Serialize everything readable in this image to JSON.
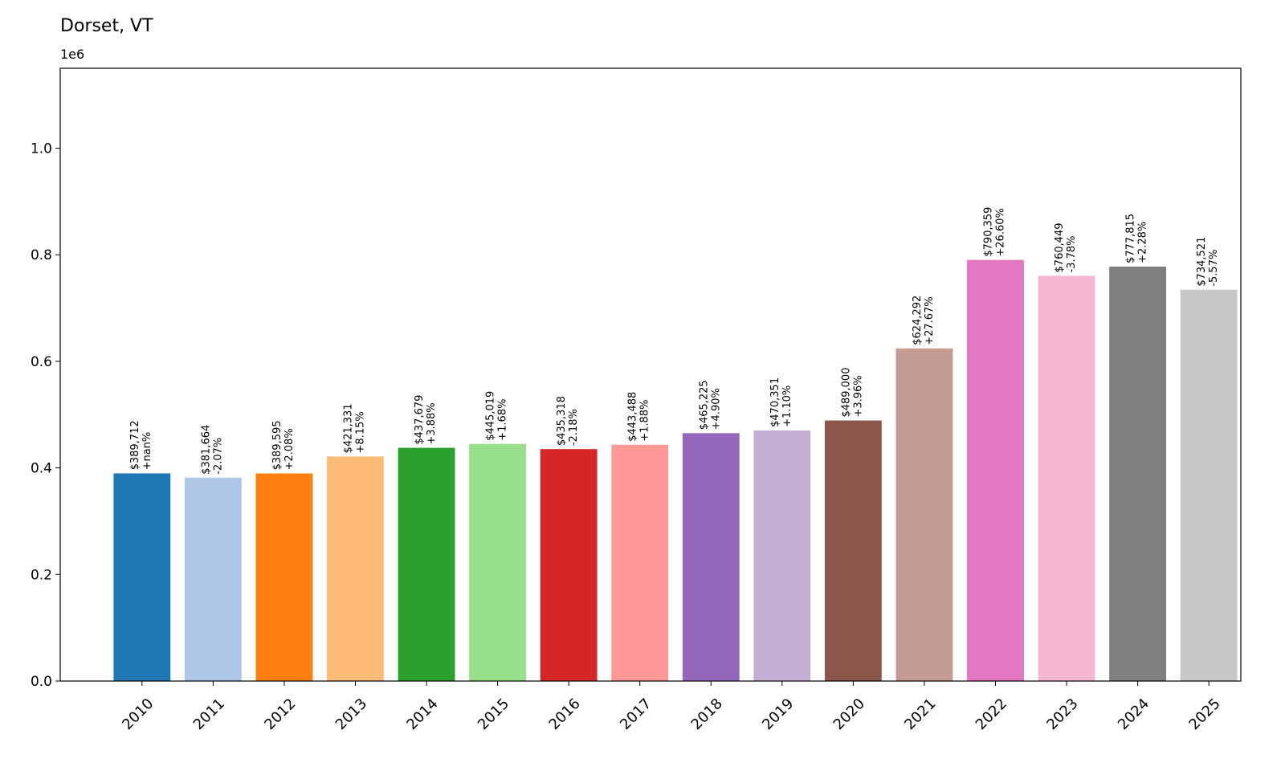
{
  "chart_data": {
    "type": "bar",
    "title": "Dorset, VT",
    "y_multiplier": "1e6",
    "xlabel": "",
    "ylabel": "",
    "ylim": [
      0,
      1150000
    ],
    "grid": false,
    "yticks": [
      {
        "value": 0,
        "label": "0.0"
      },
      {
        "value": 200000,
        "label": "0.2"
      },
      {
        "value": 400000,
        "label": "0.4"
      },
      {
        "value": 600000,
        "label": "0.6"
      },
      {
        "value": 800000,
        "label": "0.8"
      },
      {
        "value": 1000000,
        "label": "1.0"
      }
    ],
    "categories": [
      "2010",
      "2011",
      "2012",
      "2013",
      "2014",
      "2015",
      "2016",
      "2017",
      "2018",
      "2019",
      "2020",
      "2021",
      "2022",
      "2023",
      "2024",
      "2025"
    ],
    "values": [
      389712,
      381664,
      389595,
      421331,
      437679,
      445019,
      435318,
      443488,
      465225,
      470351,
      489000,
      624292,
      790359,
      760449,
      777815,
      734521
    ],
    "value_labels": [
      "$389,712",
      "$381,664",
      "$389,595",
      "$421,331",
      "$437,679",
      "$445,019",
      "$435,318",
      "$443,488",
      "$465,225",
      "$470,351",
      "$489,000",
      "$624,292",
      "$790,359",
      "$760,449",
      "$777,815",
      "$734,521"
    ],
    "change_labels": [
      "+nan%",
      "-2.07%",
      "+2.08%",
      "+8.15%",
      "+3.88%",
      "+1.68%",
      "-2.18%",
      "+1.88%",
      "+4.90%",
      "+1.10%",
      "+3.96%",
      "+27.67%",
      "+26.60%",
      "-3.78%",
      "+2.28%",
      "-5.57%"
    ],
    "colors": [
      "#1f77b4",
      "#aec7e8",
      "#ff7f0e",
      "#ffbb78",
      "#2ca02c",
      "#98df8a",
      "#d62728",
      "#ff9896",
      "#9467bd",
      "#c5b0d5",
      "#8c564b",
      "#c49c94",
      "#e377c2",
      "#f7b6d2",
      "#7f7f7f",
      "#c7c7c7"
    ]
  }
}
